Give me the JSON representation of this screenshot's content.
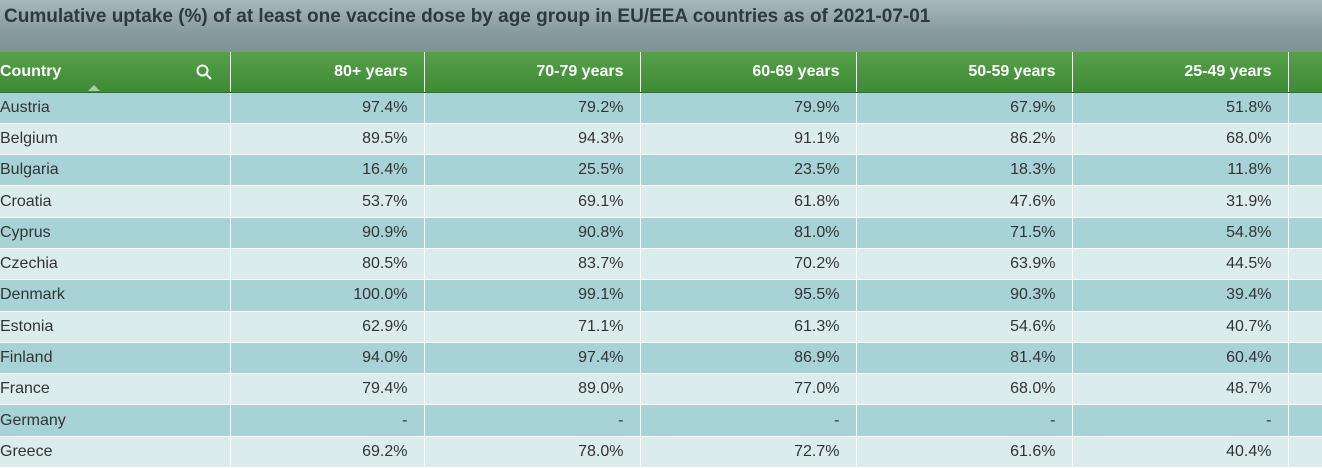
{
  "title": "Cumulative uptake (%) of at least one vaccine dose by age group in EU/EEA countries as of 2021-07-01",
  "icons": {
    "search": "search-icon",
    "sort": "sort-ascending-icon"
  },
  "colors": {
    "header_green": "#4a9640",
    "row_dark": "#a8d3d6",
    "row_light": "#dceced"
  },
  "table": {
    "headers": [
      "Country",
      "80+ years",
      "70-79 years",
      "60-69 years",
      "50-59 years",
      "25-49 years"
    ],
    "rows": [
      [
        "Austria",
        "97.4%",
        "79.2%",
        "79.9%",
        "67.9%",
        "51.8%"
      ],
      [
        "Belgium",
        "89.5%",
        "94.3%",
        "91.1%",
        "86.2%",
        "68.0%"
      ],
      [
        "Bulgaria",
        "16.4%",
        "25.5%",
        "23.5%",
        "18.3%",
        "11.8%"
      ],
      [
        "Croatia",
        "53.7%",
        "69.1%",
        "61.8%",
        "47.6%",
        "31.9%"
      ],
      [
        "Cyprus",
        "90.9%",
        "90.8%",
        "81.0%",
        "71.5%",
        "54.8%"
      ],
      [
        "Czechia",
        "80.5%",
        "83.7%",
        "70.2%",
        "63.9%",
        "44.5%"
      ],
      [
        "Denmark",
        "100.0%",
        "99.1%",
        "95.5%",
        "90.3%",
        "39.4%"
      ],
      [
        "Estonia",
        "62.9%",
        "71.1%",
        "61.3%",
        "54.6%",
        "40.7%"
      ],
      [
        "Finland",
        "94.0%",
        "97.4%",
        "86.9%",
        "81.4%",
        "60.4%"
      ],
      [
        "France",
        "79.4%",
        "89.0%",
        "77.0%",
        "68.0%",
        "48.7%"
      ],
      [
        "Germany",
        "-",
        "-",
        "-",
        "-",
        "-"
      ],
      [
        "Greece",
        "69.2%",
        "78.0%",
        "72.7%",
        "61.6%",
        "40.4%"
      ]
    ]
  }
}
